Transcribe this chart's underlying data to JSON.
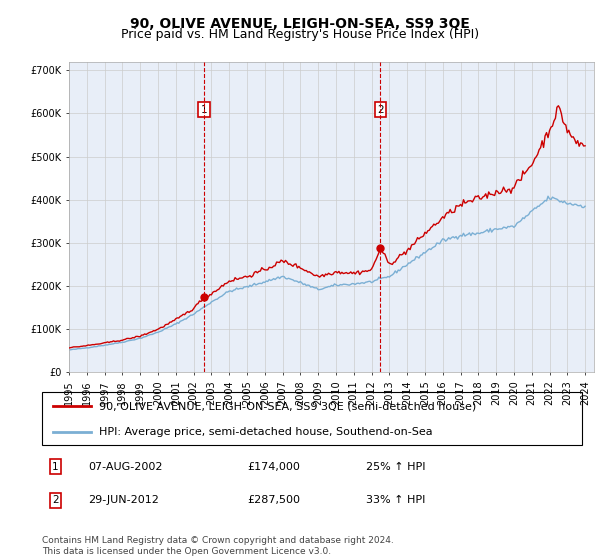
{
  "title": "90, OLIVE AVENUE, LEIGH-ON-SEA, SS9 3QE",
  "subtitle": "Price paid vs. HM Land Registry's House Price Index (HPI)",
  "red_label": "90, OLIVE AVENUE, LEIGH-ON-SEA, SS9 3QE (semi-detached house)",
  "blue_label": "HPI: Average price, semi-detached house, Southend-on-Sea",
  "footnote": "Contains HM Land Registry data © Crown copyright and database right 2024.\nThis data is licensed under the Open Government Licence v3.0.",
  "ann1_num": "1",
  "ann1_date": "07-AUG-2002",
  "ann1_price": "£174,000",
  "ann1_pct": "25% ↑ HPI",
  "ann1_x": 2002.58,
  "ann1_y": 174000,
  "ann2_num": "2",
  "ann2_date": "29-JUN-2012",
  "ann2_price": "£287,500",
  "ann2_pct": "33% ↑ HPI",
  "ann2_x": 2012.5,
  "ann2_y": 287500,
  "ylim": [
    0,
    720000
  ],
  "yticks": [
    0,
    100000,
    200000,
    300000,
    400000,
    500000,
    600000,
    700000
  ],
  "ytick_labels": [
    "£0",
    "£100K",
    "£200K",
    "£300K",
    "£400K",
    "£500K",
    "£600K",
    "£700K"
  ],
  "xlim_start": 1995,
  "xlim_end": 2024.5,
  "plot_bg_color": "#e8eef8",
  "grid_color": "#cccccc",
  "red_color": "#cc0000",
  "blue_color": "#7bafd4",
  "title_fontsize": 10,
  "subtitle_fontsize": 9,
  "tick_fontsize": 7,
  "legend_fontsize": 8,
  "table_fontsize": 8,
  "footnote_fontsize": 6.5,
  "hpi_anchors": [
    [
      1995.0,
      52000
    ],
    [
      1996.0,
      57000
    ],
    [
      1997.0,
      63000
    ],
    [
      1998.0,
      70000
    ],
    [
      1999.0,
      79000
    ],
    [
      2000.0,
      93000
    ],
    [
      2001.0,
      112000
    ],
    [
      2002.0,
      135000
    ],
    [
      2003.0,
      163000
    ],
    [
      2004.0,
      188000
    ],
    [
      2005.0,
      198000
    ],
    [
      2006.0,
      210000
    ],
    [
      2007.0,
      222000
    ],
    [
      2008.0,
      208000
    ],
    [
      2009.0,
      192000
    ],
    [
      2010.0,
      202000
    ],
    [
      2011.0,
      205000
    ],
    [
      2012.0,
      210000
    ],
    [
      2013.0,
      222000
    ],
    [
      2014.0,
      250000
    ],
    [
      2015.0,
      278000
    ],
    [
      2016.0,
      305000
    ],
    [
      2017.0,
      318000
    ],
    [
      2018.0,
      322000
    ],
    [
      2019.0,
      332000
    ],
    [
      2020.0,
      338000
    ],
    [
      2021.0,
      372000
    ],
    [
      2022.0,
      405000
    ],
    [
      2023.0,
      392000
    ],
    [
      2024.0,
      385000
    ]
  ],
  "red_anchors": [
    [
      1995.0,
      57000
    ],
    [
      1996.0,
      62000
    ],
    [
      1997.0,
      68000
    ],
    [
      1998.0,
      75000
    ],
    [
      1999.0,
      84000
    ],
    [
      2000.0,
      100000
    ],
    [
      2001.0,
      122000
    ],
    [
      2002.0,
      148000
    ],
    [
      2002.58,
      174000
    ],
    [
      2003.0,
      182000
    ],
    [
      2004.0,
      212000
    ],
    [
      2005.0,
      222000
    ],
    [
      2006.0,
      238000
    ],
    [
      2007.0,
      258000
    ],
    [
      2008.0,
      243000
    ],
    [
      2009.0,
      222000
    ],
    [
      2010.0,
      233000
    ],
    [
      2011.0,
      230000
    ],
    [
      2012.0,
      237000
    ],
    [
      2012.5,
      287500
    ],
    [
      2013.0,
      250000
    ],
    [
      2014.0,
      282000
    ],
    [
      2015.0,
      322000
    ],
    [
      2016.0,
      358000
    ],
    [
      2017.0,
      388000
    ],
    [
      2018.0,
      403000
    ],
    [
      2019.0,
      418000
    ],
    [
      2020.0,
      428000
    ],
    [
      2021.0,
      482000
    ],
    [
      2022.0,
      562000
    ],
    [
      2022.5,
      612000
    ],
    [
      2023.0,
      562000
    ],
    [
      2023.5,
      532000
    ],
    [
      2024.0,
      525000
    ]
  ]
}
